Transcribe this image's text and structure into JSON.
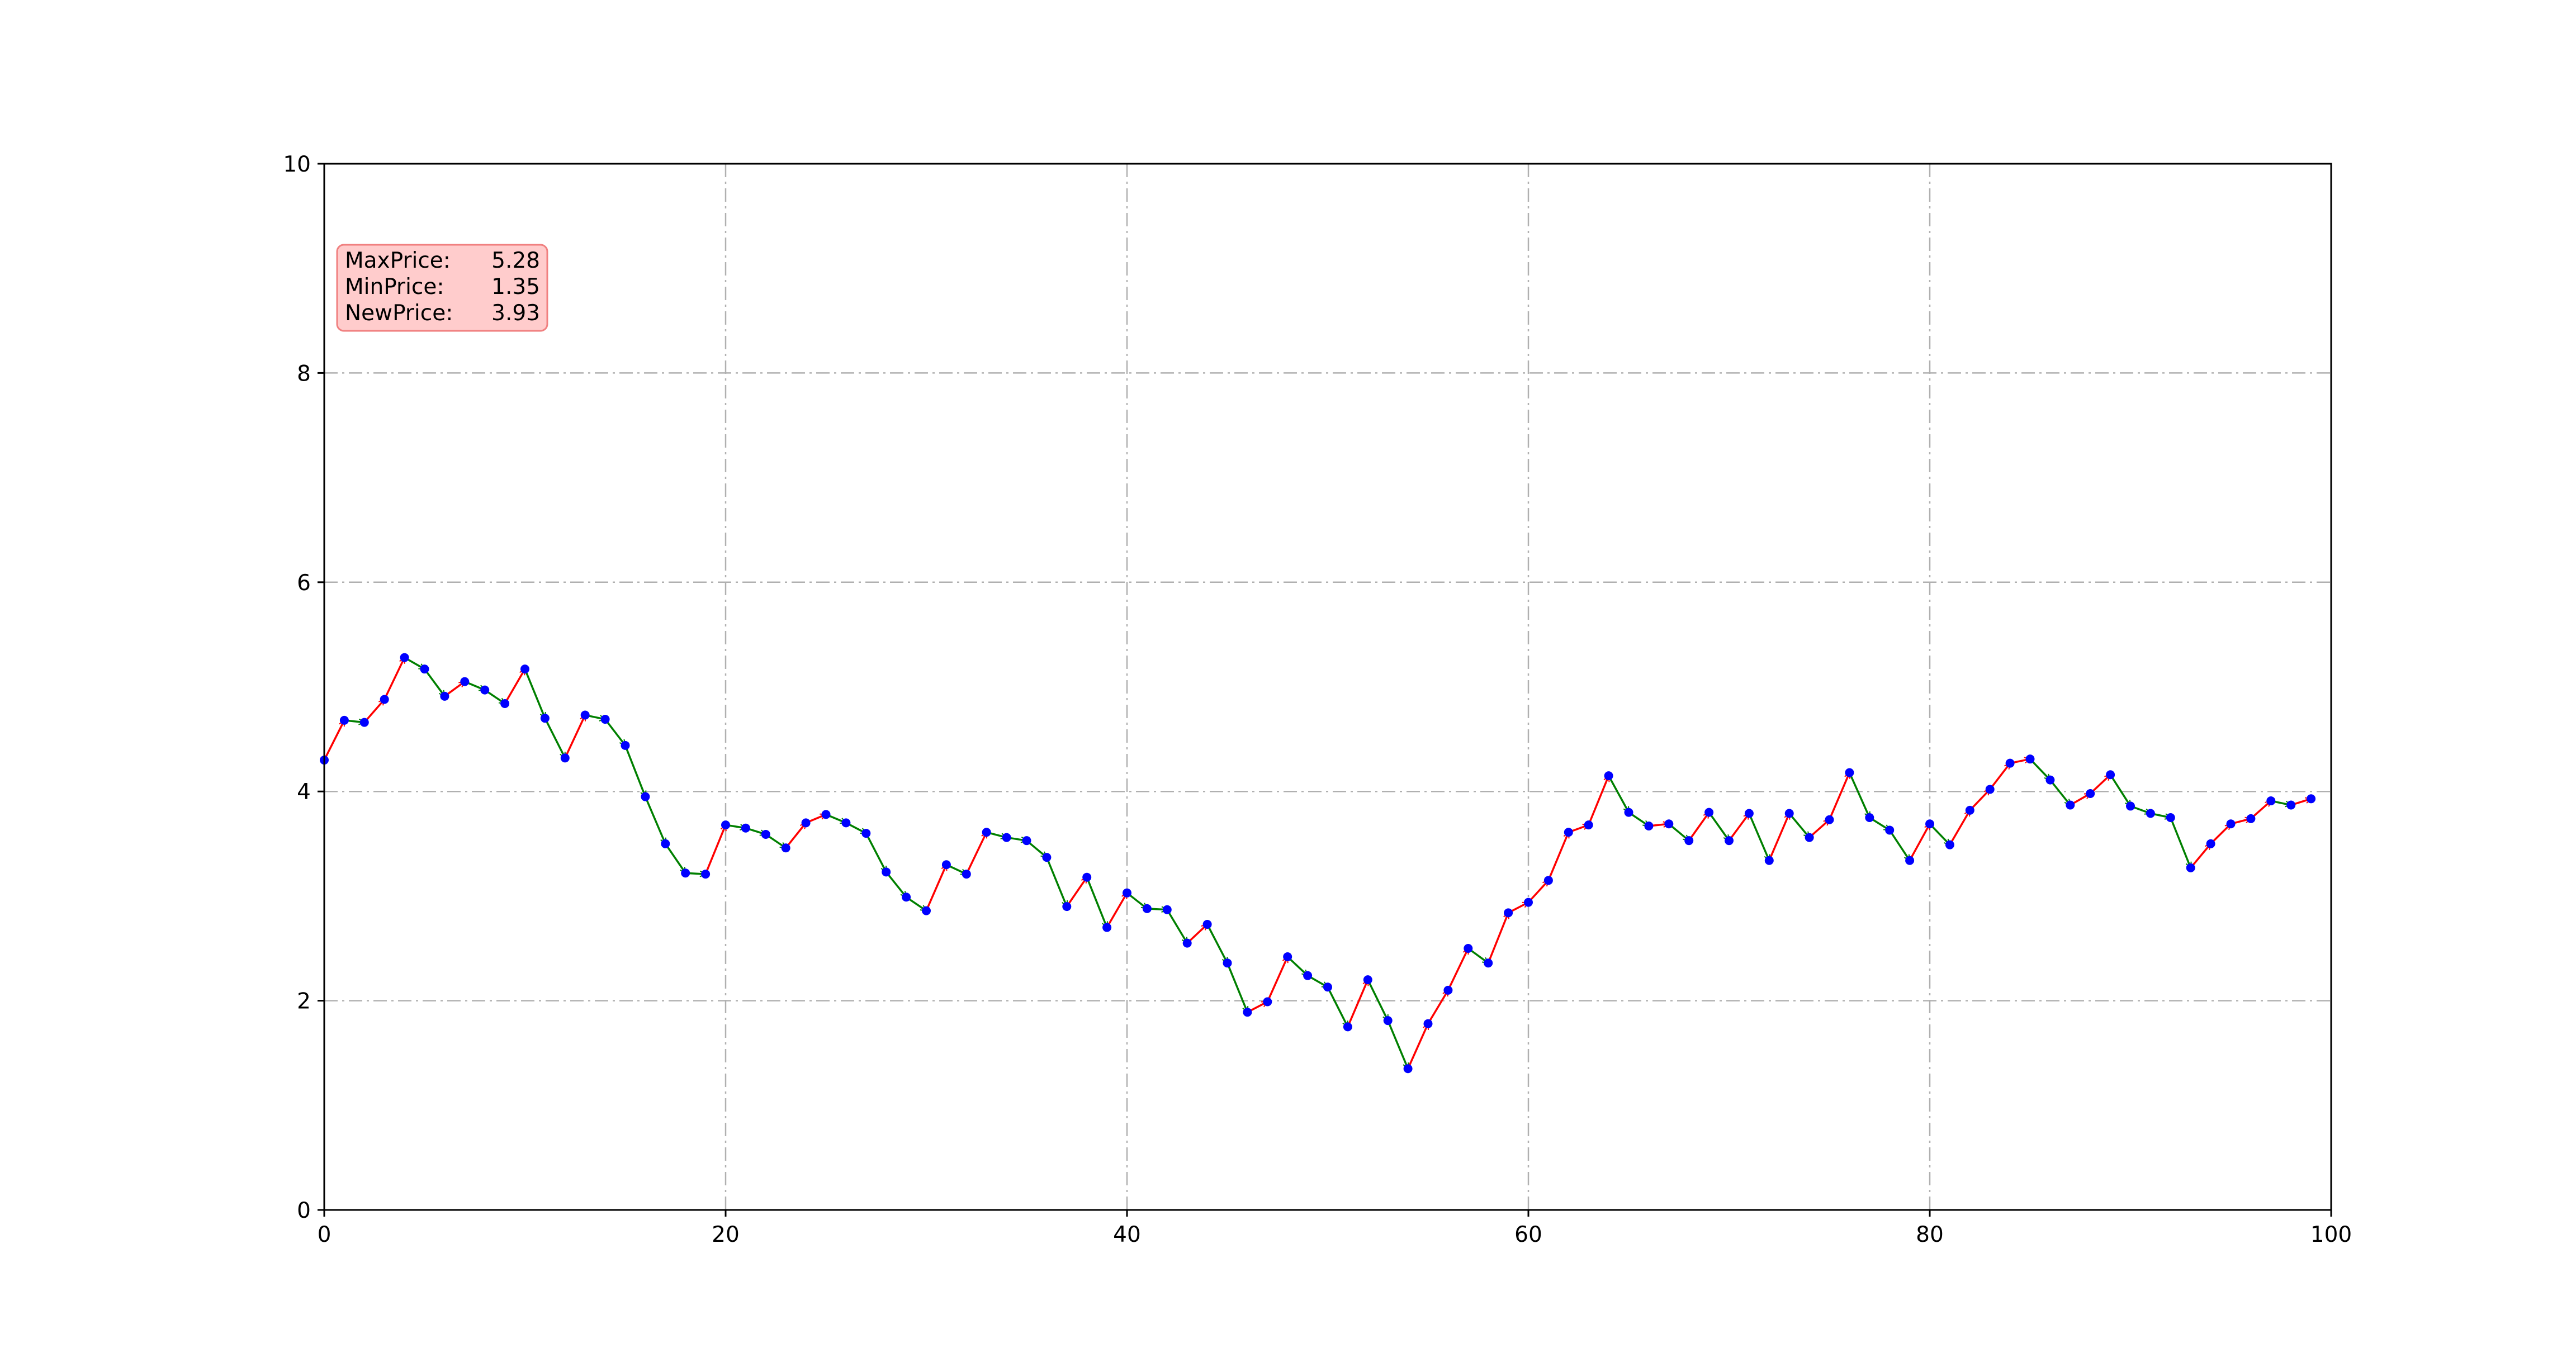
{
  "chart_data": {
    "type": "line",
    "title": "",
    "xlabel": "",
    "ylabel": "",
    "xlim": [
      0,
      100
    ],
    "ylim": [
      0,
      10
    ],
    "xticks": [
      "0",
      "20",
      "40",
      "60",
      "80",
      "100"
    ],
    "yticks": [
      "0",
      "2",
      "4",
      "6",
      "8",
      "10"
    ],
    "grid": true,
    "grid_style": "dash-dot",
    "series": [
      {
        "x": [
          0,
          1,
          2,
          3,
          4,
          5,
          6,
          7,
          8,
          9,
          10,
          11,
          12,
          13,
          14,
          15,
          16,
          17,
          18,
          19,
          20,
          21,
          22,
          23,
          24,
          25,
          26,
          27,
          28,
          29,
          30,
          31,
          32,
          33,
          34,
          35,
          36,
          37,
          38,
          39,
          40,
          41,
          42,
          43,
          44,
          45,
          46,
          47,
          48,
          49,
          50,
          51,
          52,
          53,
          54,
          55,
          56,
          57,
          58,
          59,
          60,
          61,
          62,
          63,
          64,
          65,
          66,
          67,
          68,
          69,
          70,
          71,
          72,
          73,
          74,
          75,
          76,
          77,
          78,
          79,
          80,
          81,
          82,
          83,
          84,
          85,
          86,
          87,
          88,
          89,
          90,
          91,
          92,
          93,
          94,
          95,
          96,
          97,
          98,
          99
        ],
        "values": [
          4.3,
          4.68,
          4.66,
          4.88,
          5.28,
          5.17,
          4.91,
          5.05,
          4.97,
          4.84,
          5.17,
          4.7,
          4.32,
          4.73,
          4.69,
          4.44,
          3.95,
          3.5,
          3.22,
          3.21,
          3.68,
          3.65,
          3.59,
          3.46,
          3.7,
          3.78,
          3.7,
          3.6,
          3.23,
          2.99,
          2.86,
          3.3,
          3.21,
          3.61,
          3.56,
          3.53,
          3.37,
          2.9,
          3.18,
          2.7,
          3.03,
          2.88,
          2.87,
          2.55,
          2.73,
          2.36,
          1.89,
          1.99,
          2.42,
          2.24,
          2.13,
          1.75,
          2.2,
          1.81,
          1.35,
          1.78,
          2.1,
          2.5,
          2.36,
          2.84,
          2.94,
          3.15,
          3.61,
          3.68,
          4.15,
          3.8,
          3.67,
          3.69,
          3.53,
          3.8,
          3.53,
          3.79,
          3.34,
          3.79,
          3.56,
          3.73,
          4.18,
          3.75,
          3.63,
          3.34,
          3.69,
          3.49,
          3.82,
          4.02,
          4.27,
          4.31,
          4.11,
          3.87,
          3.98,
          4.16,
          3.86,
          3.79,
          3.75,
          3.27,
          3.5,
          3.69,
          3.74,
          3.91,
          3.87,
          3.93
        ]
      }
    ],
    "up_color": "#ff0000",
    "down_color": "#008000",
    "point_color": "#0000ff"
  },
  "info_box": {
    "max_label": "MaxPrice:",
    "max_value": "5.28",
    "min_label": "MinPrice:",
    "min_value": "1.35",
    "new_label": "NewPrice:",
    "new_value": "3.93",
    "background": "#ffcccc",
    "border": "#f08080"
  }
}
